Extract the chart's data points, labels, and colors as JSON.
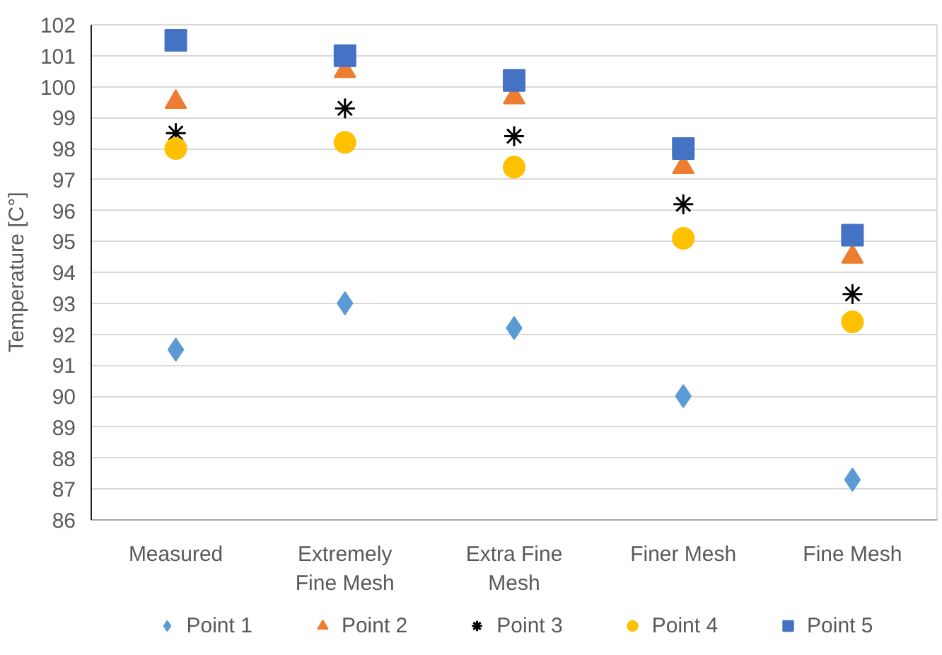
{
  "chart_data": {
    "type": "scatter",
    "ylabel": "Temperature [C°]",
    "categories": [
      "Measured",
      "Extremely Fine Mesh",
      "Extra Fine Mesh",
      "Finer Mesh",
      "Fine Mesh"
    ],
    "series": [
      {
        "name": "Point 1",
        "color": "#5b9bd5",
        "marker": "diamond",
        "values": [
          91.5,
          93.0,
          92.2,
          90.0,
          87.3
        ]
      },
      {
        "name": "Point 2",
        "color": "#ed7d31",
        "marker": "triangle",
        "values": [
          99.5,
          100.5,
          99.65,
          97.4,
          94.5
        ]
      },
      {
        "name": "Point 3",
        "color": "#000000",
        "marker": "cross",
        "values": [
          98.5,
          99.3,
          98.4,
          96.2,
          93.3
        ]
      },
      {
        "name": "Point 4",
        "color": "#ffc000",
        "marker": "circle",
        "values": [
          98.0,
          98.2,
          97.4,
          95.1,
          92.4
        ]
      },
      {
        "name": "Point 5",
        "color": "#4472c4",
        "marker": "square",
        "values": [
          101.5,
          101.0,
          100.2,
          98.0,
          95.2
        ]
      }
    ],
    "ylim": [
      86,
      102
    ],
    "yticks": [
      86,
      87,
      88,
      89,
      90,
      91,
      92,
      93,
      94,
      95,
      96,
      97,
      98,
      99,
      100,
      101,
      102
    ],
    "grid": "y",
    "legend": "bottom"
  }
}
